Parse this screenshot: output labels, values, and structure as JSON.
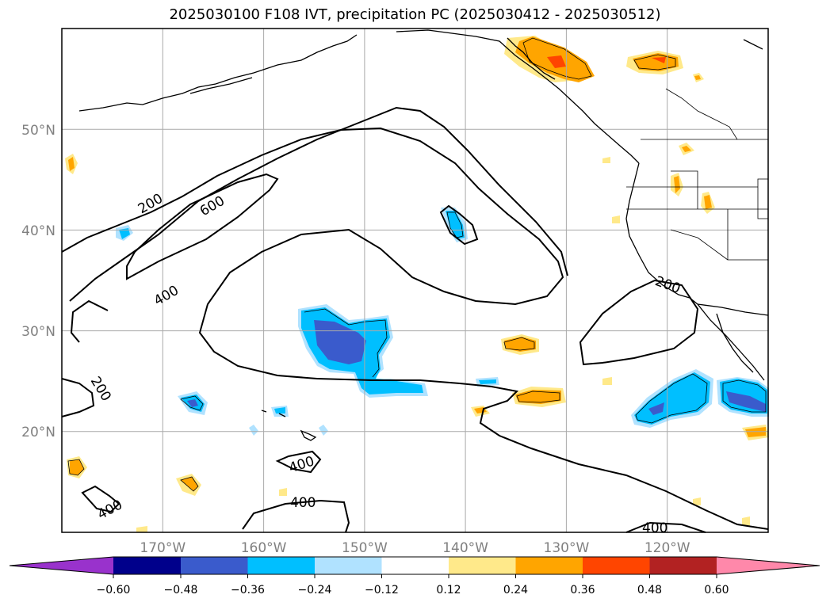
{
  "title": "2025030100 F108 IVT, precipitation PC (2025030412 - 2025030512)",
  "map": {
    "projection": "lat-lon",
    "lon_range": [
      -180,
      -110
    ],
    "lat_range": [
      10,
      60
    ],
    "lon_ticks": [
      "170°W",
      "160°W",
      "150°W",
      "140°W",
      "130°W",
      "120°W"
    ],
    "lat_ticks": [
      "20°N",
      "30°N",
      "40°N",
      "50°N"
    ],
    "grid": true,
    "ivt_contour_labels": [
      "200",
      "600",
      "400",
      "200",
      "400",
      "400",
      "200",
      "400",
      "400"
    ]
  },
  "colorbar": {
    "ticks": [
      "−0.60",
      "−0.48",
      "−0.36",
      "−0.24",
      "−0.12",
      "0.12",
      "0.24",
      "0.36",
      "0.48",
      "0.60"
    ],
    "colors": [
      "#9932cc",
      "#00008b",
      "#3a5bcc",
      "#00bfff",
      "#b0e2ff",
      "#ffffff",
      "#ffe98a",
      "#ffa500",
      "#ff4500",
      "#b22222",
      "#ff88aa"
    ],
    "extend": "both"
  }
}
